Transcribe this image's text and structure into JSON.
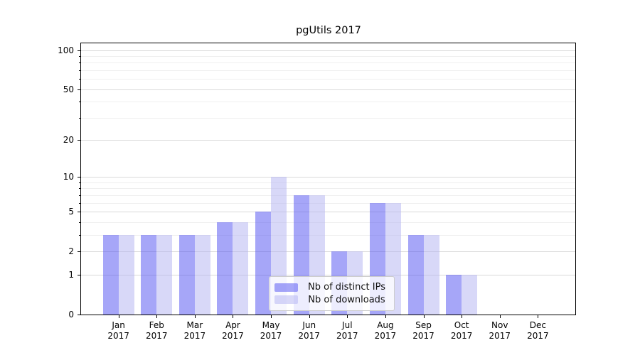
{
  "chart_data": {
    "type": "bar",
    "title": "pgUtils 2017",
    "categories": [
      "Jan",
      "Feb",
      "Mar",
      "Apr",
      "May",
      "Jun",
      "Jul",
      "Aug",
      "Sep",
      "Oct",
      "Nov",
      "Dec"
    ],
    "category_year": "2017",
    "series": [
      {
        "name": "Nb of distinct IPs",
        "color": "#a6a6f6",
        "fill": "rgba(77,77,242,0.5)",
        "values": [
          3,
          3,
          3,
          4,
          5,
          7,
          2,
          6,
          3,
          1,
          0,
          0
        ]
      },
      {
        "name": "Nb of downloads",
        "color": "#d8d8f8",
        "fill": "rgba(177,177,241,0.5)",
        "values": [
          3,
          3,
          3,
          4,
          10,
          7,
          2,
          6,
          3,
          1,
          0,
          0
        ]
      }
    ],
    "xlabel": "",
    "ylabel": "",
    "y_scale": "log10(v+1)",
    "y_ticks": [
      0,
      1,
      2,
      5,
      10,
      20,
      50,
      100
    ],
    "y_minor_gridlines": [
      3,
      4,
      6,
      7,
      8,
      9,
      30,
      40,
      60,
      70,
      80,
      90
    ],
    "ylim": [
      0,
      115
    ],
    "grid": true,
    "legend_position": "lower-center",
    "colors": {
      "grid_major": "#d9d9d9",
      "grid_minor": "#efefef",
      "axis": "#000000",
      "background": "#ffffff",
      "legend_border": "#cccccc"
    }
  }
}
